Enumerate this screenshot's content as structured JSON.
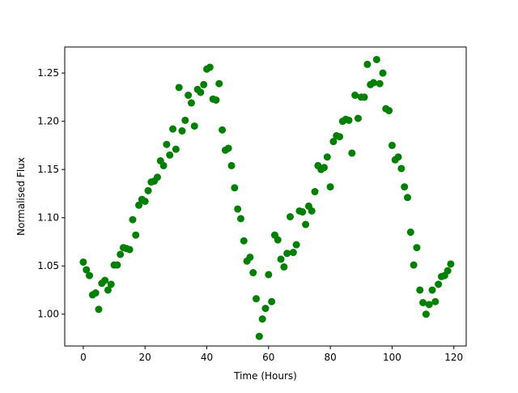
{
  "chart_data": {
    "type": "scatter",
    "title": "",
    "xlabel": "Time (Hours)",
    "ylabel": "Normalised Flux",
    "xlim": [
      -6,
      124
    ],
    "ylim": [
      0.967,
      1.277
    ],
    "xticks": [
      0,
      20,
      40,
      60,
      80,
      100,
      120
    ],
    "yticks": [
      1.0,
      1.05,
      1.1,
      1.15,
      1.2,
      1.25
    ],
    "xtick_labels": [
      "0",
      "20",
      "40",
      "60",
      "80",
      "100",
      "120"
    ],
    "ytick_labels": [
      "1.00",
      "1.05",
      "1.10",
      "1.15",
      "1.20",
      "1.25"
    ],
    "grid": false,
    "legend": null,
    "marker_color": "#008000",
    "series": [
      {
        "x": [
          0,
          1,
          2,
          3,
          4,
          5,
          6,
          7,
          8,
          9,
          10,
          11,
          12,
          13,
          14,
          15,
          16,
          17,
          18,
          19,
          20,
          21,
          22,
          23,
          24,
          25,
          26,
          27,
          28,
          29,
          30,
          31,
          32,
          33,
          34,
          35,
          36,
          37,
          38,
          39,
          40,
          41,
          42,
          43,
          44,
          45,
          46,
          47,
          48,
          49,
          50,
          51,
          52,
          53,
          54,
          55,
          56,
          57,
          58,
          59,
          60,
          61,
          62,
          63,
          64,
          65,
          66,
          67,
          68,
          69,
          70,
          71,
          72,
          73,
          74,
          75,
          76,
          77,
          78,
          79,
          80,
          81,
          82,
          83,
          84,
          85,
          86,
          87,
          88,
          89,
          90,
          91,
          92,
          93,
          94,
          95,
          96,
          97,
          98,
          99,
          100,
          101,
          102,
          103,
          104,
          105,
          106,
          107,
          108,
          109,
          110,
          111,
          112,
          113,
          114,
          115,
          116,
          117,
          118,
          119
        ],
        "y": [
          1.054,
          1.046,
          1.04,
          1.02,
          1.022,
          1.005,
          1.032,
          1.035,
          1.025,
          1.031,
          1.051,
          1.051,
          1.062,
          1.069,
          1.068,
          1.067,
          1.098,
          1.082,
          1.113,
          1.119,
          1.117,
          1.128,
          1.137,
          1.138,
          1.142,
          1.159,
          1.154,
          1.176,
          1.165,
          1.192,
          1.171,
          1.235,
          1.19,
          1.201,
          1.227,
          1.219,
          1.195,
          1.233,
          1.23,
          1.238,
          1.254,
          1.256,
          1.223,
          1.222,
          1.239,
          1.191,
          1.17,
          1.172,
          1.154,
          1.131,
          1.109,
          1.099,
          1.076,
          1.055,
          1.059,
          1.043,
          1.016,
          0.977,
          0.995,
          1.006,
          1.041,
          1.013,
          1.082,
          1.077,
          1.057,
          1.049,
          1.063,
          1.101,
          1.064,
          1.072,
          1.107,
          1.106,
          1.093,
          1.112,
          1.107,
          1.127,
          1.154,
          1.15,
          1.152,
          1.163,
          1.132,
          1.179,
          1.185,
          1.184,
          1.2,
          1.202,
          1.201,
          1.167,
          1.227,
          1.203,
          1.225,
          1.225,
          1.259,
          1.238,
          1.24,
          1.264,
          1.239,
          1.25,
          1.213,
          1.211,
          1.175,
          1.16,
          1.163,
          1.151,
          1.132,
          1.121,
          1.085,
          1.051,
          1.069,
          1.025,
          1.012,
          1.0,
          1.01,
          1.025,
          1.013,
          1.031,
          1.039,
          1.04,
          1.045,
          1.052
        ]
      }
    ]
  }
}
